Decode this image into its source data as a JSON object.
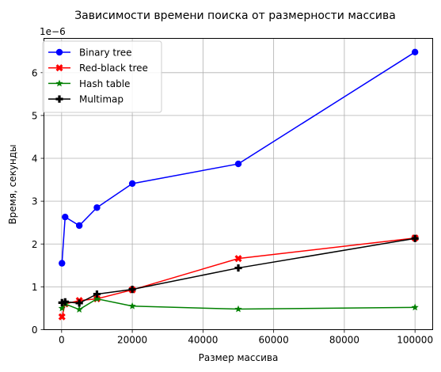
{
  "chart_data": {
    "type": "line",
    "title": "Зависимости времени поиска от размерности массива",
    "xlabel": "Размер массива",
    "ylabel": "Время, секунды",
    "y_offset_label": "1e−6",
    "y_scale": 1e-06,
    "xlim": [
      -5000,
      105000
    ],
    "ylim": [
      0,
      6.8e-06
    ],
    "x_ticks": [
      0,
      20000,
      40000,
      60000,
      80000,
      100000
    ],
    "x_tick_labels": [
      "0",
      "20000",
      "40000",
      "60000",
      "80000",
      "100000"
    ],
    "y_ticks": [
      0,
      1e-06,
      2e-06,
      3e-06,
      4e-06,
      5e-06,
      6e-06
    ],
    "y_tick_labels": [
      "0",
      "1",
      "2",
      "3",
      "4",
      "5",
      "6"
    ],
    "grid": true,
    "legend_position": "top-left",
    "x": [
      100,
      1000,
      5000,
      10000,
      20000,
      50000,
      100000
    ],
    "series": [
      {
        "name": "Binary tree",
        "color": "#0000ff",
        "marker": "circle",
        "values": [
          1.55e-06,
          2.63e-06,
          2.43e-06,
          2.85e-06,
          3.41e-06,
          3.87e-06,
          6.48e-06
        ]
      },
      {
        "name": "Red-black tree",
        "color": "#ff0000",
        "marker": "x-filled",
        "values": [
          3e-07,
          6e-07,
          6.8e-07,
          7.2e-07,
          9.3e-07,
          1.66e-06,
          2.14e-06
        ]
      },
      {
        "name": "Hash table",
        "color": "#008000",
        "marker": "star",
        "values": [
          5e-07,
          6e-07,
          4.7e-07,
          7.2e-07,
          5.5e-07,
          4.8e-07,
          5.2e-07
        ]
      },
      {
        "name": "Multimap",
        "color": "#000000",
        "marker": "plus-filled",
        "values": [
          6.3e-07,
          6.5e-07,
          6.2e-07,
          8.3e-07,
          9.4e-07,
          1.44e-06,
          2.13e-06
        ]
      }
    ]
  }
}
